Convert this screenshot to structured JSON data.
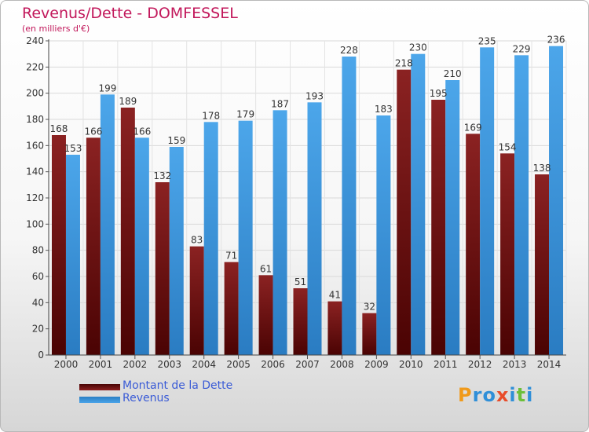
{
  "title": "Revenus/Dette - DOMFESSEL",
  "subtitle": "(en milliers d'€)",
  "legend": {
    "debt_label": "Montant de la Dette",
    "revenue_label": "Revenus"
  },
  "logo": {
    "text": "Proxiti"
  },
  "colors": {
    "debt": "#8b2020",
    "debt_dark": "#4a0505",
    "revenue": "#4aa3e8",
    "revenue_dark": "#2a7fc4",
    "title": "#c2185b",
    "legend_text": "#3a5bd6"
  },
  "chart_data": {
    "type": "bar",
    "title": "Revenus/Dette - DOMFESSEL",
    "subtitle": "(en milliers d'€)",
    "categories": [
      "2000",
      "2001",
      "2002",
      "2003",
      "2004",
      "2005",
      "2006",
      "2007",
      "2008",
      "2009",
      "2010",
      "2011",
      "2012",
      "2013",
      "2014"
    ],
    "series": [
      {
        "name": "Montant de la Dette",
        "values": [
          168,
          166,
          189,
          132,
          83,
          71,
          61,
          51,
          41,
          32,
          218,
          195,
          169,
          154,
          138
        ]
      },
      {
        "name": "Revenus",
        "values": [
          153,
          199,
          166,
          159,
          178,
          179,
          187,
          193,
          228,
          183,
          230,
          210,
          235,
          229,
          236
        ]
      }
    ],
    "ylim": [
      0,
      240
    ],
    "yticks": [
      0,
      20,
      40,
      60,
      80,
      100,
      120,
      140,
      160,
      180,
      200,
      220,
      240
    ],
    "grid": true,
    "legend_position": "bottom-left"
  }
}
